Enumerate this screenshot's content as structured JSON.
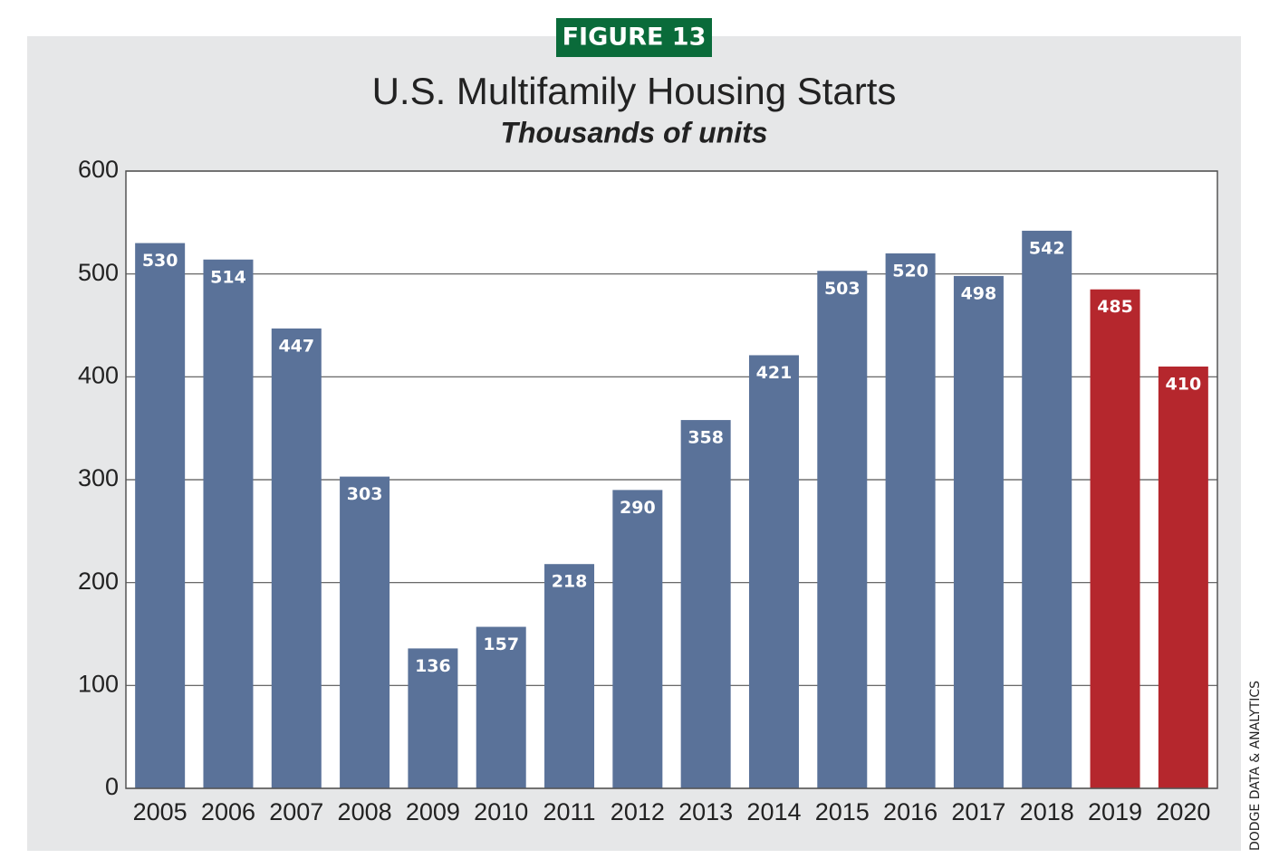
{
  "chart_data": {
    "type": "bar",
    "figure_label": "FIGURE 13",
    "title": "U.S. Multifamily Housing Starts",
    "subtitle": "Thousands of units",
    "source": "DODGE DATA & ANALYTICS",
    "categories": [
      "2005",
      "2006",
      "2007",
      "2008",
      "2009",
      "2010",
      "2011",
      "2012",
      "2013",
      "2014",
      "2015",
      "2016",
      "2017",
      "2018",
      "2019",
      "2020"
    ],
    "values": [
      530,
      514,
      447,
      303,
      136,
      157,
      218,
      290,
      358,
      421,
      503,
      520,
      498,
      542,
      485,
      410
    ],
    "colors": [
      "#5a7299",
      "#5a7299",
      "#5a7299",
      "#5a7299",
      "#5a7299",
      "#5a7299",
      "#5a7299",
      "#5a7299",
      "#5a7299",
      "#5a7299",
      "#5a7299",
      "#5a7299",
      "#5a7299",
      "#5a7299",
      "#b5272d",
      "#b5272d"
    ],
    "ylim": [
      0,
      600
    ],
    "yticks": [
      0,
      100,
      200,
      300,
      400,
      500,
      600
    ],
    "grid": true
  }
}
